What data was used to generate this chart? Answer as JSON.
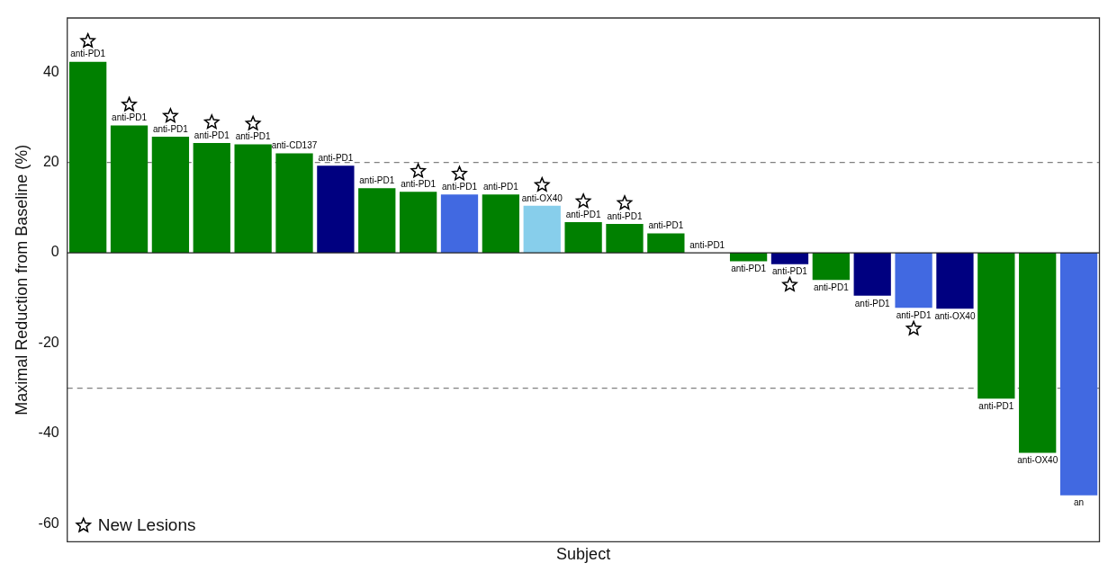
{
  "chart_data": {
    "type": "bar",
    "xlabel": "Subject",
    "ylabel": "Maximal Reduction from Baseline (%)",
    "categories": [
      null,
      null,
      null,
      null,
      null,
      null,
      null,
      null,
      null,
      null,
      null,
      null,
      null,
      null,
      null,
      null,
      null,
      null,
      null,
      null,
      null,
      null,
      null,
      null,
      null
    ],
    "values": [
      42.3,
      28.2,
      25.7,
      24.3,
      24.0,
      22.0,
      19.3,
      14.3,
      13.5,
      12.9,
      12.9,
      10.4,
      6.8,
      6.4,
      4.3,
      0,
      -1.9,
      -2.5,
      -6.0,
      -9.5,
      -12.2,
      -12.4,
      -32.3,
      -44.3,
      -53.7
    ],
    "colors": [
      "#008000",
      "#008000",
      "#008000",
      "#008000",
      "#008000",
      "#008000",
      "#000080",
      "#008000",
      "#008000",
      "#4169e1",
      "#008000",
      "#87ceeb",
      "#008000",
      "#008000",
      "#008000",
      "#008000",
      "#008000",
      "#000080",
      "#008000",
      "#000080",
      "#4169e1",
      "#000080",
      "#008000",
      "#008000",
      "#4169e1"
    ],
    "value_labels": [
      "anti-PD1",
      "anti-PD1",
      "anti-PD1",
      "anti-PD1",
      "anti-PD1",
      "anti-CD137",
      "anti-PD1",
      "anti-PD1",
      "anti-PD1",
      "anti-PD1",
      "anti-PD1",
      "anti-OX40",
      "anti-PD1",
      "anti-PD1",
      "anti-PD1",
      "anti-PD1",
      "anti-PD1",
      "anti-PD1",
      "anti-PD1",
      "anti-PD1",
      "anti-PD1",
      "anti-OX40",
      "anti-PD1",
      "anti-OX40",
      "an"
    ],
    "series": [
      {
        "name": "New Lesions",
        "type": "scatter",
        "color": "#000000",
        "marker": "star",
        "values": [
          46.9,
          32.8,
          30.3,
          28.9,
          28.6,
          null,
          null,
          null,
          18.1,
          17.5,
          null,
          15.0,
          11.4,
          11.0,
          null,
          null,
          null,
          -7.1,
          null,
          null,
          -16.8,
          null,
          null,
          null,
          null
        ]
      }
    ],
    "ylim": [
      -64,
      52
    ],
    "yticks": [
      -60,
      -40,
      -20,
      0,
      20,
      40
    ],
    "grid": false,
    "legend": "bottom left",
    "ref_lines": [
      {
        "axis": "y",
        "value": 20,
        "color": "#808080",
        "line_style": "dashed"
      },
      {
        "axis": "y",
        "value": -30,
        "color": "#808080",
        "line_style": "dashed"
      }
    ]
  }
}
